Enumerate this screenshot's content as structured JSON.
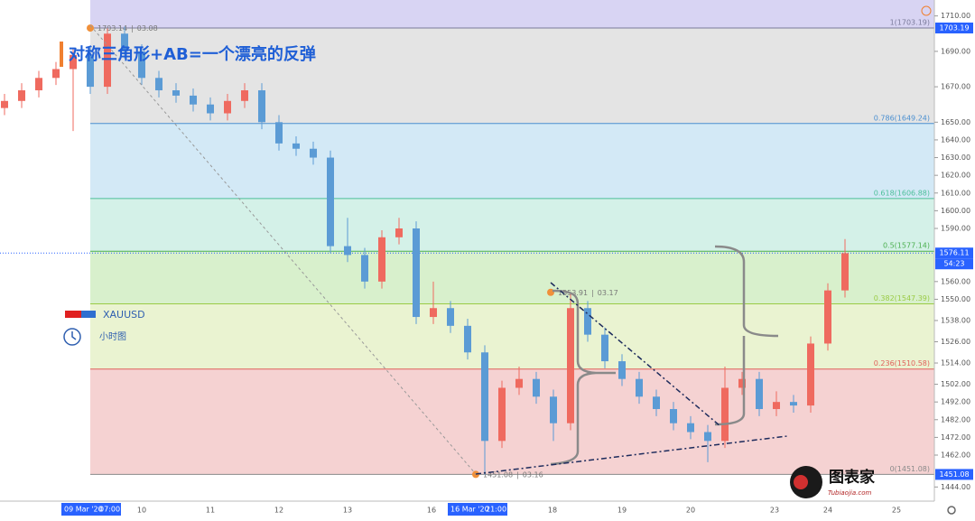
{
  "chart_data": {
    "type": "candlestick",
    "title": "对称三角形+AB=一个漂亮的反弹",
    "symbol": "XAUUSD",
    "interval": "小时图",
    "up_color": "#ef6a5f",
    "down_color": "#5b9bd5",
    "ylim": [
      1436,
      1719
    ],
    "yticks": [
      {
        "value": 1710,
        "label": "1710.00"
      },
      {
        "value": 1690,
        "label": "1690.00"
      },
      {
        "value": 1670,
        "label": "1670.00"
      },
      {
        "value": 1650,
        "label": "1650.00"
      },
      {
        "value": 1640,
        "label": "1640.00"
      },
      {
        "value": 1630,
        "label": "1630.00"
      },
      {
        "value": 1620,
        "label": "1620.00"
      },
      {
        "value": 1610,
        "label": "1610.00"
      },
      {
        "value": 1600,
        "label": "1600.00"
      },
      {
        "value": 1590,
        "label": "1590.00"
      },
      {
        "value": 1560,
        "label": "1560.00"
      },
      {
        "value": 1550,
        "label": "1550.00"
      },
      {
        "value": 1538,
        "label": "1538.00"
      },
      {
        "value": 1526,
        "label": "1526.00"
      },
      {
        "value": 1514,
        "label": "1514.00"
      },
      {
        "value": 1502,
        "label": "1502.00"
      },
      {
        "value": 1492,
        "label": "1492.00"
      },
      {
        "value": 1482,
        "label": "1482.00"
      },
      {
        "value": 1472,
        "label": "1472.00"
      },
      {
        "value": 1462,
        "label": "1462.00"
      },
      {
        "value": 1444,
        "label": "1444.00"
      }
    ],
    "x_labels": [
      "10",
      "11",
      "12",
      "13",
      "16",
      "18",
      "19",
      "20",
      "23",
      "24",
      "25"
    ],
    "x_markers": [
      {
        "date": "09 Mar '20",
        "time": "07:00"
      },
      {
        "date": "16 Mar '20",
        "time": "21:00"
      }
    ],
    "fib_levels": [
      {
        "label": "1(1703.19)",
        "value": 1703.19,
        "value_label": "1703.19",
        "color": "#7a7a9a",
        "zone": "#e4e4e4"
      },
      {
        "label": "0.786(1649.24)",
        "value": 1649.24,
        "color": "#4a8fd0",
        "zone": "#d3e9f6"
      },
      {
        "label": "0.618(1606.88)",
        "value": 1606.88,
        "color": "#4cbf9a",
        "zone": "#d4f1e8"
      },
      {
        "label": "0.5(1577.14)",
        "value": 1577.14,
        "color": "#4caf50",
        "zone": "#d8f0cc"
      },
      {
        "label": "0.382(1547.39)",
        "value": 1547.39,
        "color": "#9acb45",
        "zone": "#eaf3d1"
      },
      {
        "label": "0.236(1510.58)",
        "value": 1510.58,
        "color": "#e0605a",
        "zone": "#f5d2d2"
      },
      {
        "label": "0(1451.08)",
        "value": 1451.08,
        "value_label": "1451.08",
        "color": "#8a8a8a"
      }
    ],
    "current_price": {
      "value": 1576.11,
      "label": "1576.11",
      "countdown": "54:23"
    },
    "pivots": [
      {
        "value": 1703.14,
        "label": "1703.14",
        "date": "03.08"
      },
      {
        "value": 1553.91,
        "label": "1553.91",
        "date": "03.17"
      },
      {
        "value": 1451.08,
        "label": "1451.08",
        "date": "03.16"
      }
    ],
    "candles": [
      {
        "open": 1658,
        "high": 1666,
        "low": 1654,
        "close": 1662
      },
      {
        "open": 1662,
        "high": 1672,
        "low": 1658,
        "close": 1668
      },
      {
        "open": 1668,
        "high": 1679,
        "low": 1664,
        "close": 1675
      },
      {
        "open": 1675,
        "high": 1684,
        "low": 1671,
        "close": 1680
      },
      {
        "open": 1680,
        "high": 1692,
        "low": 1645,
        "close": 1688
      },
      {
        "open": 1688,
        "high": 1692,
        "low": 1666,
        "close": 1670
      },
      {
        "open": 1670,
        "high": 1703,
        "low": 1666,
        "close": 1700
      },
      {
        "open": 1700,
        "high": 1704,
        "low": 1686,
        "close": 1690
      },
      {
        "open": 1690,
        "high": 1694,
        "low": 1671,
        "close": 1675
      },
      {
        "open": 1675,
        "high": 1679,
        "low": 1664,
        "close": 1668
      },
      {
        "open": 1668,
        "high": 1672,
        "low": 1661,
        "close": 1665
      },
      {
        "open": 1665,
        "high": 1669,
        "low": 1656,
        "close": 1660
      },
      {
        "open": 1660,
        "high": 1664,
        "low": 1651,
        "close": 1655
      },
      {
        "open": 1655,
        "high": 1666,
        "low": 1651,
        "close": 1662
      },
      {
        "open": 1662,
        "high": 1672,
        "low": 1658,
        "close": 1668
      },
      {
        "open": 1668,
        "high": 1672,
        "low": 1646,
        "close": 1650
      },
      {
        "open": 1650,
        "high": 1654,
        "low": 1634,
        "close": 1638
      },
      {
        "open": 1638,
        "high": 1642,
        "low": 1631,
        "close": 1635
      },
      {
        "open": 1635,
        "high": 1639,
        "low": 1626,
        "close": 1630
      },
      {
        "open": 1630,
        "high": 1634,
        "low": 1576,
        "close": 1580
      },
      {
        "open": 1580,
        "high": 1596,
        "low": 1571,
        "close": 1575
      },
      {
        "open": 1575,
        "high": 1579,
        "low": 1556,
        "close": 1560
      },
      {
        "open": 1560,
        "high": 1589,
        "low": 1556,
        "close": 1585
      },
      {
        "open": 1585,
        "high": 1596,
        "low": 1581,
        "close": 1590
      },
      {
        "open": 1590,
        "high": 1594,
        "low": 1536,
        "close": 1540
      },
      {
        "open": 1540,
        "high": 1560,
        "low": 1536,
        "close": 1545
      },
      {
        "open": 1545,
        "high": 1549,
        "low": 1531,
        "close": 1535
      },
      {
        "open": 1535,
        "high": 1539,
        "low": 1516,
        "close": 1520
      },
      {
        "open": 1520,
        "high": 1524,
        "low": 1451,
        "close": 1470
      },
      {
        "open": 1470,
        "high": 1504,
        "low": 1466,
        "close": 1500
      },
      {
        "open": 1500,
        "high": 1512,
        "low": 1496,
        "close": 1505
      },
      {
        "open": 1505,
        "high": 1509,
        "low": 1491,
        "close": 1495
      },
      {
        "open": 1495,
        "high": 1499,
        "low": 1470,
        "close": 1480
      },
      {
        "open": 1480,
        "high": 1554,
        "low": 1476,
        "close": 1545
      },
      {
        "open": 1545,
        "high": 1549,
        "low": 1526,
        "close": 1530
      },
      {
        "open": 1530,
        "high": 1534,
        "low": 1511,
        "close": 1515
      },
      {
        "open": 1515,
        "high": 1519,
        "low": 1501,
        "close": 1505
      },
      {
        "open": 1505,
        "high": 1509,
        "low": 1491,
        "close": 1495
      },
      {
        "open": 1495,
        "high": 1499,
        "low": 1484,
        "close": 1488
      },
      {
        "open": 1488,
        "high": 1492,
        "low": 1476,
        "close": 1480
      },
      {
        "open": 1480,
        "high": 1484,
        "low": 1471,
        "close": 1475
      },
      {
        "open": 1475,
        "high": 1479,
        "low": 1458,
        "close": 1470
      },
      {
        "open": 1470,
        "high": 1512,
        "low": 1466,
        "close": 1500
      },
      {
        "open": 1500,
        "high": 1509,
        "low": 1496,
        "close": 1505
      },
      {
        "open": 1505,
        "high": 1509,
        "low": 1484,
        "close": 1488
      },
      {
        "open": 1488,
        "high": 1498,
        "low": 1484,
        "close": 1492
      },
      {
        "open": 1492,
        "high": 1496,
        "low": 1486,
        "close": 1490
      },
      {
        "open": 1490,
        "high": 1529,
        "low": 1486,
        "close": 1525
      },
      {
        "open": 1525,
        "high": 1559,
        "low": 1521,
        "close": 1555
      },
      {
        "open": 1555,
        "high": 1584,
        "low": 1551,
        "close": 1576
      }
    ],
    "logo": {
      "name": "图表家",
      "site": "Tubiaojia.com"
    }
  }
}
